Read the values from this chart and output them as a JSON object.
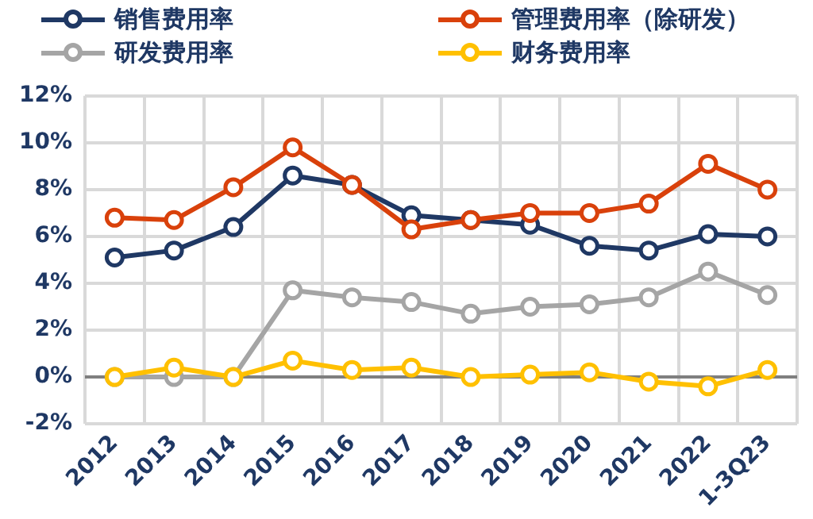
{
  "chart_data": {
    "type": "line",
    "categories": [
      "2012",
      "2013",
      "2014",
      "2015",
      "2016",
      "2017",
      "2018",
      "2019",
      "2020",
      "2021",
      "2022",
      "1-3Q23"
    ],
    "series": [
      {
        "name": "销售费用率",
        "color": "#1f3864",
        "values": [
          5.1,
          5.4,
          6.4,
          8.6,
          8.2,
          6.9,
          6.7,
          6.5,
          5.6,
          5.4,
          6.1,
          6.0
        ]
      },
      {
        "name": "管理费用率（除研发）",
        "color": "#d9410b",
        "values": [
          6.8,
          6.7,
          8.1,
          9.8,
          8.2,
          6.3,
          6.7,
          7.0,
          7.0,
          7.4,
          9.1,
          8.0
        ]
      },
      {
        "name": "研发费用率",
        "color": "#a5a5a5",
        "values": [
          0,
          0,
          0,
          3.7,
          3.4,
          3.2,
          2.7,
          3.0,
          3.1,
          3.4,
          4.5,
          3.5
        ]
      },
      {
        "name": "财务费用率",
        "color": "#ffc000",
        "values": [
          0,
          0.4,
          0,
          0.7,
          0.3,
          0.4,
          0,
          0.1,
          0.2,
          -0.2,
          -0.4,
          0.3
        ]
      }
    ],
    "ylim": [
      -2,
      12
    ],
    "yticks": [
      {
        "value": -2,
        "label": "-2%"
      },
      {
        "value": 0,
        "label": "0%"
      },
      {
        "value": 2,
        "label": "2%"
      },
      {
        "value": 4,
        "label": "4%"
      },
      {
        "value": 6,
        "label": "6%"
      },
      {
        "value": 8,
        "label": "8%"
      },
      {
        "value": 10,
        "label": "10%"
      },
      {
        "value": 12,
        "label": "12%"
      }
    ],
    "grid": true,
    "legend": "top",
    "marker": "circle",
    "line_style": "solid"
  }
}
